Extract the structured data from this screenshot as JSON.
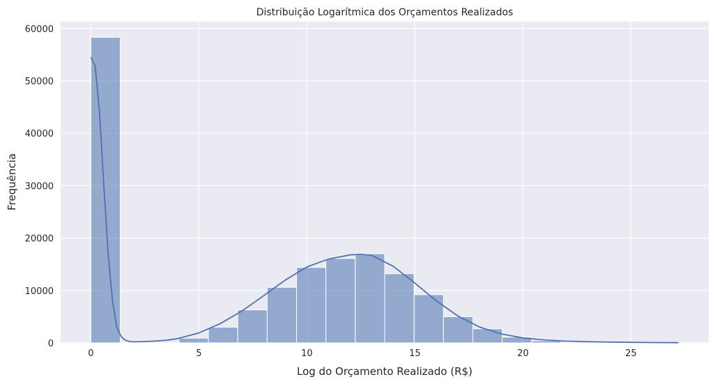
{
  "chart_data": {
    "type": "bar",
    "title": "Distribuição Logarítmica dos Orçamentos Realizados",
    "xlabel": "Log do Orçamento Realizado (R$)",
    "ylabel": "Frequência",
    "xlim": [
      -1.4,
      28.6
    ],
    "ylim": [
      0,
      61300
    ],
    "xticks": [
      0,
      5,
      10,
      15,
      20,
      25
    ],
    "yticks": [
      0,
      10000,
      20000,
      30000,
      40000,
      50000,
      60000
    ],
    "grid": true,
    "bin_width": 1.36,
    "bins": [
      {
        "x0": 0.0,
        "x1": 1.36,
        "count": 58300
      },
      {
        "x0": 4.08,
        "x1": 5.44,
        "count": 900
      },
      {
        "x0": 5.44,
        "x1": 6.8,
        "count": 3000
      },
      {
        "x0": 6.8,
        "x1": 8.16,
        "count": 6300
      },
      {
        "x0": 8.16,
        "x1": 9.52,
        "count": 10600
      },
      {
        "x0": 9.52,
        "x1": 10.88,
        "count": 14400
      },
      {
        "x0": 10.88,
        "x1": 12.24,
        "count": 16100
      },
      {
        "x0": 12.24,
        "x1": 13.6,
        "count": 17000
      },
      {
        "x0": 13.6,
        "x1": 14.96,
        "count": 13200
      },
      {
        "x0": 14.96,
        "x1": 16.32,
        "count": 9200
      },
      {
        "x0": 16.32,
        "x1": 17.68,
        "count": 5000
      },
      {
        "x0": 17.68,
        "x1": 19.04,
        "count": 2700
      },
      {
        "x0": 19.04,
        "x1": 20.4,
        "count": 1100
      },
      {
        "x0": 20.4,
        "x1": 21.76,
        "count": 400
      },
      {
        "x0": 21.76,
        "x1": 23.12,
        "count": 150
      },
      {
        "x0": 23.12,
        "x1": 24.48,
        "count": 80
      },
      {
        "x0": 24.48,
        "x1": 25.84,
        "count": 40
      },
      {
        "x0": 25.84,
        "x1": 27.2,
        "count": 20
      }
    ],
    "kde": {
      "x": [
        0,
        0.2,
        0.4,
        0.6,
        0.8,
        1.0,
        1.2,
        1.4,
        1.6,
        1.8,
        2,
        2.5,
        3,
        3.5,
        4,
        5,
        6,
        7,
        8,
        9,
        10,
        11,
        12,
        12.5,
        13,
        14,
        15,
        16,
        17,
        18,
        19,
        20,
        21,
        22,
        23,
        24,
        25,
        26,
        27.2
      ],
      "y": [
        54500,
        52800,
        44000,
        30000,
        17000,
        8000,
        3000,
        1200,
        500,
        250,
        200,
        250,
        350,
        500,
        800,
        1900,
        3700,
        6100,
        9000,
        12000,
        14500,
        16000,
        16800,
        16900,
        16700,
        14600,
        11400,
        8000,
        5100,
        3000,
        1700,
        950,
        550,
        330,
        220,
        150,
        100,
        70,
        40
      ]
    },
    "colors": {
      "background": "#eaeaf2",
      "grid": "#ffffff",
      "bar_fill": "#4c72b0",
      "bar_fill_opacity": 0.55,
      "kde_line": "#4c72b0"
    }
  }
}
